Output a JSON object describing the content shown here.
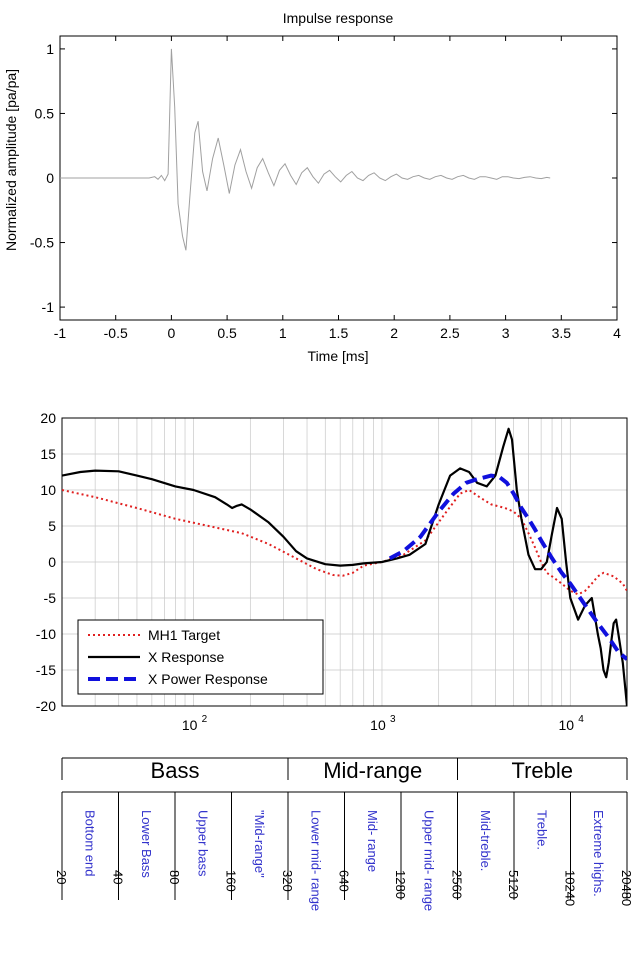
{
  "chart_data": [
    {
      "type": "line",
      "title": "Impulse response",
      "xlabel": "Time [ms]",
      "ylabel": "Normalized amplitude [pa/pa]",
      "xlim": [
        -1,
        4
      ],
      "ylim": [
        -1.1,
        1.1
      ],
      "xticks": [
        "-1",
        "-0.5",
        "0",
        "0.5",
        "1",
        "1.5",
        "2",
        "2.5",
        "3",
        "3.5",
        "4"
      ],
      "yticks": [
        "1",
        "0.5",
        "0",
        "-0.5",
        "-1"
      ],
      "grid": false,
      "series": [
        {
          "color": "#a0a0a0",
          "x": [
            -1.0,
            -0.2,
            -0.15,
            -0.12,
            -0.09,
            -0.06,
            -0.03,
            0.0,
            0.03,
            0.06,
            0.1,
            0.13,
            0.17,
            0.21,
            0.24,
            0.28,
            0.32,
            0.37,
            0.42,
            0.47,
            0.52,
            0.57,
            0.62,
            0.67,
            0.72,
            0.77,
            0.82,
            0.87,
            0.92,
            0.97,
            1.02,
            1.07,
            1.12,
            1.17,
            1.22,
            1.27,
            1.32,
            1.37,
            1.42,
            1.47,
            1.52,
            1.57,
            1.62,
            1.67,
            1.72,
            1.77,
            1.82,
            1.87,
            1.92,
            1.97,
            2.02,
            2.07,
            2.12,
            2.17,
            2.22,
            2.27,
            2.32,
            2.37,
            2.42,
            2.47,
            2.52,
            2.57,
            2.62,
            2.67,
            2.72,
            2.77,
            2.82,
            2.87,
            2.92,
            2.97,
            3.02,
            3.07,
            3.12,
            3.17,
            3.22,
            3.27,
            3.32,
            3.37,
            3.4
          ],
          "y": [
            0.0,
            0.0,
            0.01,
            -0.01,
            0.02,
            -0.02,
            0.03,
            1.0,
            0.55,
            -0.2,
            -0.45,
            -0.56,
            -0.1,
            0.35,
            0.44,
            0.05,
            -0.1,
            0.15,
            0.31,
            0.1,
            -0.12,
            0.1,
            0.22,
            0.05,
            -0.08,
            0.08,
            0.15,
            0.04,
            -0.06,
            0.06,
            0.11,
            0.02,
            -0.05,
            0.04,
            0.08,
            0.01,
            -0.04,
            0.03,
            0.06,
            0.01,
            -0.03,
            0.02,
            0.05,
            0.0,
            -0.02,
            0.02,
            0.04,
            0.0,
            -0.02,
            0.01,
            0.03,
            0.0,
            -0.01,
            0.01,
            0.02,
            0.0,
            -0.01,
            0.01,
            0.02,
            0.0,
            -0.01,
            0.01,
            0.02,
            0.0,
            -0.01,
            0.01,
            0.01,
            0.0,
            -0.01,
            0.01,
            0.01,
            0.0,
            -0.005,
            0.005,
            0.01,
            0.0,
            -0.005,
            0.005,
            0.0
          ]
        }
      ]
    },
    {
      "type": "line",
      "xscale": "log",
      "xlim": [
        20,
        20000
      ],
      "ylim": [
        -20,
        20
      ],
      "xticks": [
        {
          "value": 100,
          "base": "10",
          "exp": "2"
        },
        {
          "value": 1000,
          "base": "10",
          "exp": "3"
        },
        {
          "value": 10000,
          "base": "10",
          "exp": "4"
        }
      ],
      "yticks": [
        "20",
        "15",
        "10",
        "5",
        "0",
        "-5",
        "-10",
        "-15",
        "-20"
      ],
      "grid": true,
      "legend_position": "bottom-left",
      "series": [
        {
          "name": "MH1 Target",
          "color": "#e02020",
          "style": "dotted",
          "x": [
            20,
            30,
            50,
            80,
            120,
            180,
            250,
            350,
            450,
            550,
            620,
            700,
            800,
            1000,
            1300,
            1700,
            2200,
            2600,
            2900,
            3300,
            3800,
            4500,
            5000,
            5500,
            6000,
            6500,
            7000,
            7500,
            8000,
            9000,
            10000,
            11000,
            12000,
            13000,
            14000,
            15000,
            17000,
            19000,
            20000
          ],
          "y": [
            10,
            9,
            7.5,
            6,
            5,
            4,
            2.5,
            0.5,
            -1,
            -1.8,
            -1.9,
            -1.5,
            -0.5,
            0,
            1,
            3,
            7,
            9.5,
            10,
            9,
            8,
            7.5,
            7,
            6,
            4,
            2,
            0,
            -1.5,
            -2,
            -3,
            -4,
            -4.5,
            -4,
            -3,
            -2,
            -1.5,
            -2,
            -3,
            -4
          ]
        },
        {
          "name": "X Response",
          "color": "#000000",
          "style": "solid",
          "x": [
            20,
            25,
            30,
            40,
            50,
            60,
            80,
            100,
            130,
            150,
            160,
            170,
            180,
            200,
            250,
            300,
            350,
            400,
            500,
            600,
            700,
            800,
            1000,
            1200,
            1400,
            1700,
            2000,
            2300,
            2600,
            2900,
            3200,
            3600,
            4000,
            4400,
            4700,
            4900,
            5200,
            5500,
            6000,
            6500,
            7000,
            7500,
            8000,
            8500,
            9000,
            9500,
            10000,
            11000,
            12000,
            13000,
            14000,
            14500,
            15000,
            15500,
            16000,
            16500,
            17000,
            17500,
            18000,
            19000,
            20000
          ],
          "y": [
            12,
            12.5,
            12.7,
            12.6,
            12,
            11.5,
            10.5,
            10,
            9,
            8,
            7.5,
            7.8,
            8,
            7.3,
            5.5,
            3.5,
            1.5,
            0.5,
            -0.3,
            -0.5,
            -0.4,
            -0.2,
            0,
            0.5,
            1,
            2.5,
            8,
            12,
            13,
            12.5,
            11,
            10.5,
            12,
            16,
            18.5,
            17,
            10,
            6,
            1,
            -1,
            -1,
            0,
            4,
            7.5,
            6,
            0,
            -5,
            -8,
            -6,
            -5,
            -10,
            -12,
            -15,
            -16,
            -14,
            -11,
            -8.5,
            -8,
            -10,
            -14,
            -20
          ]
        },
        {
          "name": "X Power Response",
          "color": "#1010dd",
          "style": "dashed",
          "x": [
            1100,
            1300,
            1600,
            2000,
            2400,
            2800,
            3200,
            3800,
            4200,
            4600,
            5000,
            5500,
            6000,
            6500,
            7000,
            8000,
            9000,
            10000,
            12000,
            14000,
            16000,
            18000,
            20000
          ],
          "y": [
            0.5,
            1.5,
            3.5,
            7,
            9.5,
            11,
            11.5,
            12,
            11.8,
            11,
            9.5,
            7.5,
            6,
            4.5,
            3,
            0.5,
            -1.5,
            -3,
            -6,
            -8.5,
            -10.5,
            -12.5,
            -13.5
          ]
        }
      ]
    }
  ],
  "bands": {
    "groups": [
      {
        "label": "Bass",
        "start": 20,
        "end": 320
      },
      {
        "label": "Mid-range",
        "start": 320,
        "end": 2560
      },
      {
        "label": "Treble",
        "start": 2560,
        "end": 20480
      }
    ],
    "ticks": [
      "20",
      "40",
      "80",
      "160",
      "320",
      "640",
      "1280",
      "2560",
      "5120",
      "10240",
      "20480"
    ],
    "sub_labels": [
      "Bottom end",
      "Lower Bass",
      "Upper bass",
      "\"Mid-range\"",
      "Lower mid- range",
      "Mid- range",
      "Upper mid- range",
      "Mid-treble.",
      "Treble.",
      "Extreme highs."
    ],
    "label_color": "#3333cc"
  }
}
